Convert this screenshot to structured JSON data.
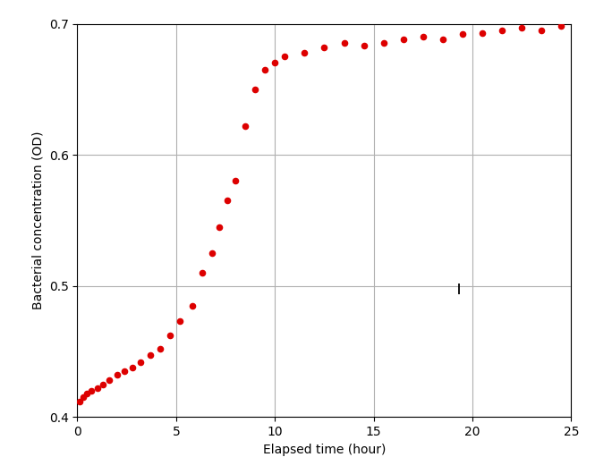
{
  "chart_data": {
    "type": "scatter",
    "xlabel": "Elapsed time (hour)",
    "ylabel": "Bacterial concentration (OD)",
    "series": [
      {
        "color": "#DD0000",
        "marker": "o",
        "x": [
          0.1,
          0.3,
          0.5,
          0.7,
          1.0,
          1.3,
          1.6,
          2.0,
          2.4,
          2.8,
          3.2,
          3.7,
          4.2,
          4.7,
          5.2,
          5.8,
          6.3,
          6.8,
          7.2,
          7.6,
          8.0,
          8.5,
          9.0,
          9.5,
          10.0,
          10.5,
          11.5,
          12.5,
          13.5,
          14.5,
          15.5,
          16.5,
          17.5,
          18.5,
          19.5,
          20.5,
          21.5,
          22.5,
          23.5,
          24.5
        ],
        "values": [
          0.412,
          0.415,
          0.418,
          0.42,
          0.422,
          0.425,
          0.428,
          0.432,
          0.435,
          0.438,
          0.442,
          0.447,
          0.452,
          0.462,
          0.473,
          0.485,
          0.51,
          0.525,
          0.545,
          0.565,
          0.58,
          0.622,
          0.65,
          0.665,
          0.67,
          0.675,
          0.678,
          0.682,
          0.685,
          0.683,
          0.685,
          0.688,
          0.69,
          0.688,
          0.692,
          0.693,
          0.695,
          0.697,
          0.695,
          0.698
        ]
      },
      {
        "color": "#000000",
        "marker": "|",
        "x": [
          19.3
        ],
        "values": [
          0.498
        ]
      }
    ],
    "xlim": [
      0,
      25
    ],
    "ylim": [
      0.4,
      0.7
    ],
    "xticks": [
      0,
      5,
      10,
      15,
      20,
      25
    ],
    "yticks": [
      0.4,
      0.5,
      0.6,
      0.7
    ],
    "grid": true
  }
}
